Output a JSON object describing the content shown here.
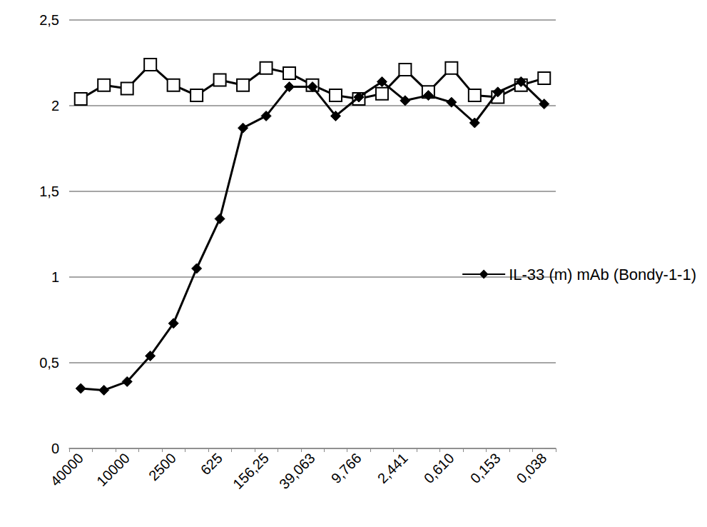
{
  "chart_data": {
    "type": "line",
    "categories": [
      "40000",
      null,
      "10000",
      null,
      "2500",
      null,
      "625",
      null,
      "156,25",
      null,
      "39,063",
      null,
      "9,766",
      null,
      "2,441",
      null,
      "0,610",
      null,
      "0,153",
      null,
      "0,038"
    ],
    "series": [
      {
        "name": "IL-33 (m) mAb (Bondy-1-1)",
        "color": "#000000",
        "marker": "diamond",
        "values": [
          0.35,
          0.34,
          0.39,
          0.54,
          0.73,
          1.05,
          1.34,
          1.87,
          1.94,
          2.11,
          2.11,
          1.94,
          2.05,
          2.14,
          2.03,
          2.06,
          2.02,
          1.9,
          2.08,
          2.14,
          2.01
        ]
      },
      {
        "color": "#000000",
        "marker": "square-open",
        "values": [
          2.04,
          2.12,
          2.1,
          2.24,
          2.12,
          2.06,
          2.15,
          2.12,
          2.22,
          2.19,
          2.12,
          2.06,
          2.04,
          2.07,
          2.21,
          2.08,
          2.22,
          2.06,
          2.05,
          2.12,
          2.16
        ]
      }
    ],
    "ylim": [
      0,
      2.5
    ],
    "yticks": [
      0,
      {
        "value": 0.5,
        "label": "0,5"
      },
      1,
      {
        "value": 1.5,
        "label": "1,5"
      },
      2,
      {
        "value": 2.5,
        "label": "2,5"
      }
    ],
    "grid": true,
    "legend": "right"
  }
}
